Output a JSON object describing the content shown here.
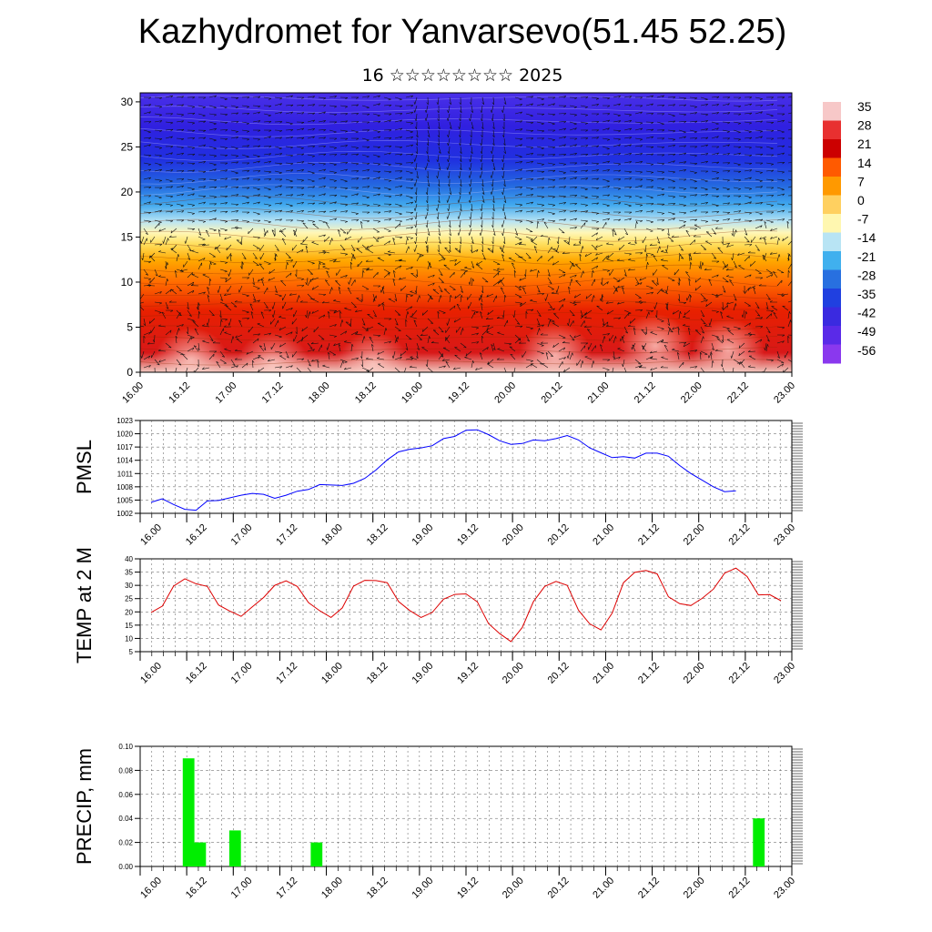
{
  "header": {
    "title": "Kazhydromet for Yanvarsevo(51.45 52.25)",
    "subtitle": "16 ☆☆☆☆☆☆☆☆ 2025"
  },
  "chart_data": [
    {
      "type": "heatmap",
      "title": "",
      "xlabel": "",
      "ylabel": "",
      "x_tick_labels": [
        "16.00",
        "16.12",
        "17.00",
        "17.12",
        "18.00",
        "18.12",
        "19.00",
        "19.12",
        "20.00",
        "20.12",
        "21.00",
        "21.12",
        "22.00",
        "22.12",
        "23.00"
      ],
      "y_ticks": [
        0,
        5,
        10,
        15,
        20,
        25,
        30
      ],
      "ylim": [
        0,
        31
      ],
      "colorbar": {
        "labels": [
          "35",
          "28",
          "21",
          "14",
          "7",
          "0",
          "-7",
          "-14",
          "-21",
          "-28",
          "-35",
          "-42",
          "-49",
          "-56"
        ],
        "colors": [
          "#f7c8c8",
          "#e83030",
          "#cc0000",
          "#ff5a00",
          "#ff9900",
          "#ffd060",
          "#fff7b0",
          "#b8e4f4",
          "#40b0ee",
          "#2870e0",
          "#2040e0",
          "#3a2ae0",
          "#5a2ae8",
          "#8a38ee"
        ]
      },
      "wind_vectors": true
    },
    {
      "type": "line",
      "ylabel": "PMSL",
      "x_tick_labels": [
        "16.00",
        "16.12",
        "17.00",
        "17.12",
        "18.00",
        "18.12",
        "19.00",
        "19.12",
        "20.00",
        "20.12",
        "21.00",
        "21.12",
        "22.00",
        "22.12",
        "23.00"
      ],
      "y_ticks": [
        1002,
        1005,
        1008,
        1011,
        1014,
        1017,
        1020,
        1023
      ],
      "ylim": [
        1002,
        1023
      ],
      "grid": true,
      "series": [
        {
          "color": "#0000ff",
          "values": [
            1004.5,
            1005.3,
            1004.0,
            1002.9,
            1002.7,
            1004.8,
            1004.9,
            1005.5,
            1006.1,
            1006.5,
            1006.3,
            1005.4,
            1006.1,
            1007.0,
            1007.4,
            1008.5,
            1008.4,
            1008.3,
            1008.8,
            1009.9,
            1011.8,
            1014.1,
            1015.9,
            1016.5,
            1016.8,
            1017.3,
            1018.9,
            1019.4,
            1020.8,
            1020.9,
            1019.8,
            1018.4,
            1017.6,
            1017.8,
            1018.6,
            1018.4,
            1018.9,
            1019.6,
            1018.6,
            1016.8,
            1015.7,
            1014.6,
            1014.8,
            1014.5,
            1015.6,
            1015.6,
            1014.9,
            1012.8,
            1011.0,
            1009.5,
            1008.0,
            1006.9,
            1007.1
          ]
        }
      ]
    },
    {
      "type": "line",
      "ylabel": "TEMP at 2 M",
      "x_tick_labels": [
        "16.00",
        "16.12",
        "17.00",
        "17.12",
        "18.00",
        "18.12",
        "19.00",
        "19.12",
        "20.00",
        "20.12",
        "21.00",
        "21.12",
        "22.00",
        "22.12",
        "23.00"
      ],
      "y_ticks": [
        5,
        10,
        15,
        20,
        25,
        30,
        35,
        40
      ],
      "ylim": [
        5,
        40
      ],
      "grid": true,
      "series": [
        {
          "color": "#dd0000",
          "values": [
            19.8,
            22.2,
            29.7,
            32.5,
            30.6,
            29.6,
            22.6,
            20.3,
            18.3,
            21.9,
            25.4,
            30.0,
            31.7,
            29.6,
            23.5,
            20.4,
            17.9,
            21.5,
            29.7,
            31.9,
            31.8,
            31.0,
            23.9,
            20.5,
            17.9,
            19.8,
            24.8,
            26.6,
            26.8,
            23.8,
            15.6,
            11.8,
            8.8,
            14.1,
            23.9,
            29.6,
            31.5,
            30.0,
            20.6,
            15.5,
            13.2,
            19.5,
            31.0,
            34.9,
            35.6,
            34.3,
            25.7,
            23.1,
            22.4,
            25.1,
            28.6,
            34.6,
            36.5,
            33.3,
            26.4,
            26.5,
            24.2
          ]
        }
      ]
    },
    {
      "type": "bar",
      "ylabel": "PRECIP, mm",
      "x_tick_labels": [
        "16.00",
        "16.12",
        "17.00",
        "17.12",
        "18.00",
        "18.12",
        "19.00",
        "19.12",
        "20.00",
        "20.12",
        "21.00",
        "21.12",
        "22.00",
        "22.12",
        "23.00"
      ],
      "y_ticks": [
        "0.00",
        "0.02",
        "0.04",
        "0.06",
        "0.08",
        "0.10"
      ],
      "ylim": [
        0,
        0.1
      ],
      "grid": true,
      "bar_color": "#00ee00",
      "bars": [
        {
          "x_hours": 12,
          "value": 0.09
        },
        {
          "x_hours": 15,
          "value": 0.02
        },
        {
          "x_hours": 24,
          "value": 0.03
        },
        {
          "x_hours": 45,
          "value": 0.02
        },
        {
          "x_hours": 159,
          "value": 0.04
        }
      ]
    }
  ]
}
